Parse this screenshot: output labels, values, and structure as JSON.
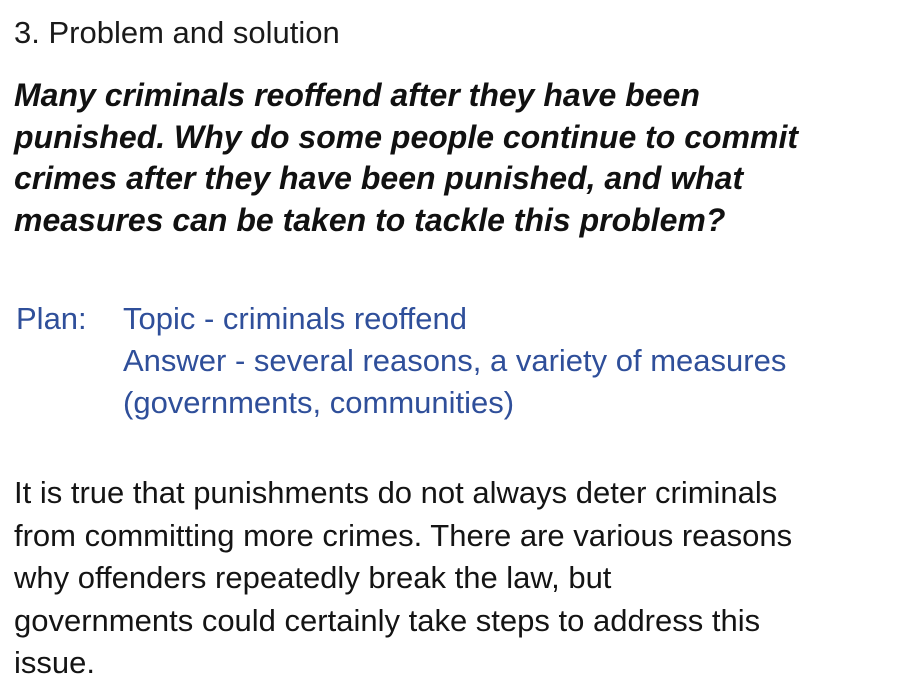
{
  "heading": "3. Problem and solution",
  "question": {
    "lines": [
      "Many criminals reoffend after they have been",
      "punished. Why do some people continue to commit",
      "crimes after they have been punished, and what",
      "measures can be taken to tackle this problem?"
    ]
  },
  "plan": {
    "label": "Plan:",
    "lines": [
      "Topic - criminals reoffend",
      "Answer - several reasons, a variety of measures",
      "(governments, communities)"
    ]
  },
  "paragraph": {
    "lines": [
      "It is true that punishments do not always deter criminals",
      "from committing more crimes. There are various reasons",
      "why offenders repeatedly break the law, but",
      "governments could certainly take steps to address this",
      "issue."
    ]
  },
  "colors": {
    "text": "#111111",
    "plan_text": "#2f4f9a",
    "background": "#ffffff"
  }
}
